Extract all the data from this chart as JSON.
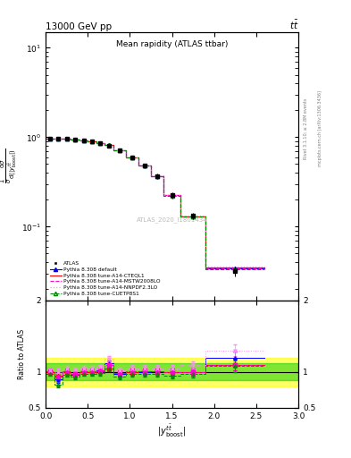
{
  "title_top": "13000 GeV pp",
  "title_top_right": "tt",
  "plot_title": "Mean rapidity (ATLAS ttbar)",
  "watermark": "ATLAS_2020_I1801434",
  "ylabel_ratio": "Ratio to ATLAS",
  "xlabel": "|y$^{tt}_{boost}$|",
  "x_centers": [
    0.05,
    0.15,
    0.25,
    0.35,
    0.45,
    0.55,
    0.65,
    0.75,
    0.875,
    1.025,
    1.175,
    1.325,
    1.5,
    1.75,
    2.25
  ],
  "x_edges": [
    0.0,
    0.1,
    0.2,
    0.3,
    0.4,
    0.5,
    0.6,
    0.7,
    0.8,
    0.95,
    1.1,
    1.25,
    1.4,
    1.6,
    1.9,
    2.6
  ],
  "atlas_y": [
    0.97,
    0.965,
    0.955,
    0.945,
    0.925,
    0.905,
    0.865,
    0.81,
    0.71,
    0.59,
    0.48,
    0.37,
    0.225,
    0.132,
    0.032
  ],
  "atlas_yerr": [
    0.025,
    0.025,
    0.025,
    0.025,
    0.025,
    0.025,
    0.025,
    0.025,
    0.025,
    0.025,
    0.025,
    0.025,
    0.018,
    0.012,
    0.004
  ],
  "default_y": [
    0.972,
    0.963,
    0.957,
    0.947,
    0.927,
    0.907,
    0.867,
    0.813,
    0.712,
    0.591,
    0.481,
    0.37,
    0.224,
    0.131,
    0.034
  ],
  "cteql1_y": [
    0.972,
    0.963,
    0.957,
    0.947,
    0.927,
    0.907,
    0.867,
    0.813,
    0.712,
    0.591,
    0.481,
    0.37,
    0.224,
    0.131,
    0.035
  ],
  "mstw_y": [
    0.972,
    0.963,
    0.957,
    0.947,
    0.927,
    0.907,
    0.867,
    0.813,
    0.712,
    0.591,
    0.481,
    0.37,
    0.224,
    0.131,
    0.034
  ],
  "nnpdf_y": [
    0.973,
    0.964,
    0.958,
    0.948,
    0.929,
    0.909,
    0.869,
    0.815,
    0.714,
    0.593,
    0.483,
    0.372,
    0.226,
    0.133,
    0.036
  ],
  "cuetp_y": [
    0.97,
    0.961,
    0.955,
    0.945,
    0.925,
    0.905,
    0.865,
    0.811,
    0.71,
    0.589,
    0.479,
    0.368,
    0.222,
    0.129,
    0.033
  ],
  "ratio_default": [
    1.0,
    0.89,
    1.0,
    0.96,
    1.0,
    1.0,
    1.02,
    1.12,
    0.97,
    1.0,
    1.0,
    1.01,
    1.0,
    1.0,
    1.2
  ],
  "ratio_cteql1": [
    1.0,
    0.95,
    1.0,
    0.97,
    1.0,
    1.0,
    1.01,
    1.05,
    0.98,
    1.0,
    1.01,
    1.01,
    1.0,
    1.0,
    1.1
  ],
  "ratio_mstw": [
    1.01,
    0.93,
    1.01,
    0.97,
    1.01,
    1.01,
    1.02,
    1.1,
    0.98,
    1.01,
    1.01,
    1.01,
    1.0,
    1.0,
    1.1
  ],
  "ratio_nnpdf": [
    1.02,
    1.0,
    1.05,
    1.03,
    1.05,
    1.05,
    1.07,
    1.18,
    1.02,
    1.05,
    1.05,
    1.05,
    1.05,
    1.1,
    1.3
  ],
  "ratio_cuetp": [
    0.97,
    0.82,
    0.96,
    0.93,
    0.97,
    0.97,
    0.98,
    1.05,
    0.93,
    0.97,
    0.97,
    0.97,
    0.95,
    0.97,
    1.08
  ],
  "ratio_default_err": [
    0.03,
    0.04,
    0.03,
    0.03,
    0.03,
    0.03,
    0.03,
    0.04,
    0.04,
    0.04,
    0.04,
    0.04,
    0.04,
    0.05,
    0.08
  ],
  "ratio_cteql1_err": [
    0.03,
    0.04,
    0.03,
    0.03,
    0.03,
    0.03,
    0.03,
    0.04,
    0.04,
    0.04,
    0.04,
    0.04,
    0.04,
    0.05,
    0.08
  ],
  "ratio_mstw_err": [
    0.03,
    0.04,
    0.03,
    0.03,
    0.03,
    0.03,
    0.03,
    0.04,
    0.04,
    0.04,
    0.04,
    0.04,
    0.04,
    0.05,
    0.08
  ],
  "ratio_nnpdf_err": [
    0.03,
    0.04,
    0.03,
    0.03,
    0.03,
    0.03,
    0.03,
    0.04,
    0.04,
    0.04,
    0.04,
    0.04,
    0.04,
    0.05,
    0.08
  ],
  "ratio_cuetp_err": [
    0.03,
    0.04,
    0.03,
    0.03,
    0.03,
    0.03,
    0.03,
    0.04,
    0.04,
    0.04,
    0.04,
    0.04,
    0.04,
    0.05,
    0.08
  ],
  "color_atlas": "#000000",
  "color_default": "#0000ff",
  "color_cteql1": "#ff0000",
  "color_mstw": "#ff00cc",
  "color_nnpdf": "#ff88ff",
  "color_cuetp": "#008800",
  "band_yellow": [
    0.8,
    1.2
  ],
  "band_green": [
    0.88,
    1.12
  ],
  "band_yellow_color": "#ffff00",
  "band_green_color": "#00cc00",
  "band_yellow_alpha": 0.6,
  "band_green_alpha": 0.5,
  "ylim_main": [
    0.015,
    15
  ],
  "ylim_ratio": [
    0.5,
    2.0
  ],
  "xlim": [
    0,
    3
  ]
}
